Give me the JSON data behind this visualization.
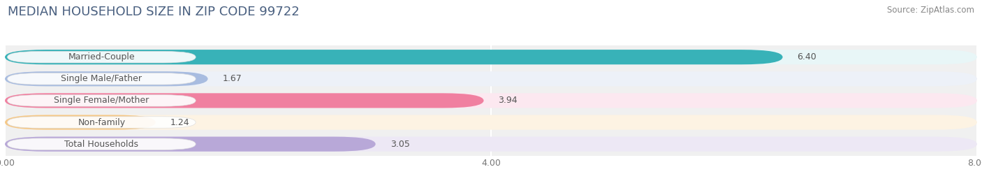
{
  "title": "MEDIAN HOUSEHOLD SIZE IN ZIP CODE 99722",
  "source": "Source: ZipAtlas.com",
  "categories": [
    "Married-Couple",
    "Single Male/Father",
    "Single Female/Mother",
    "Non-family",
    "Total Households"
  ],
  "values": [
    6.4,
    1.67,
    3.94,
    1.24,
    3.05
  ],
  "bar_colors": [
    "#38b2b8",
    "#a8bce0",
    "#f080a0",
    "#f5c888",
    "#b8a8d8"
  ],
  "bar_bg_colors": [
    "#e8f6f7",
    "#edf1f8",
    "#fce8f0",
    "#fdf3e3",
    "#ede8f5"
  ],
  "xlim": [
    0,
    8.0
  ],
  "xticks": [
    0.0,
    4.0,
    8.0
  ],
  "xtick_labels": [
    "0.00",
    "4.00",
    "8.00"
  ],
  "bar_height": 0.68,
  "background_color": "#ffffff",
  "plot_bg_color": "#f0f0f0",
  "title_fontsize": 13,
  "label_fontsize": 9,
  "value_fontsize": 9,
  "source_fontsize": 8.5,
  "title_color": "#4a6080",
  "source_color": "#888888",
  "value_color": "#555555",
  "label_color": "#555555"
}
